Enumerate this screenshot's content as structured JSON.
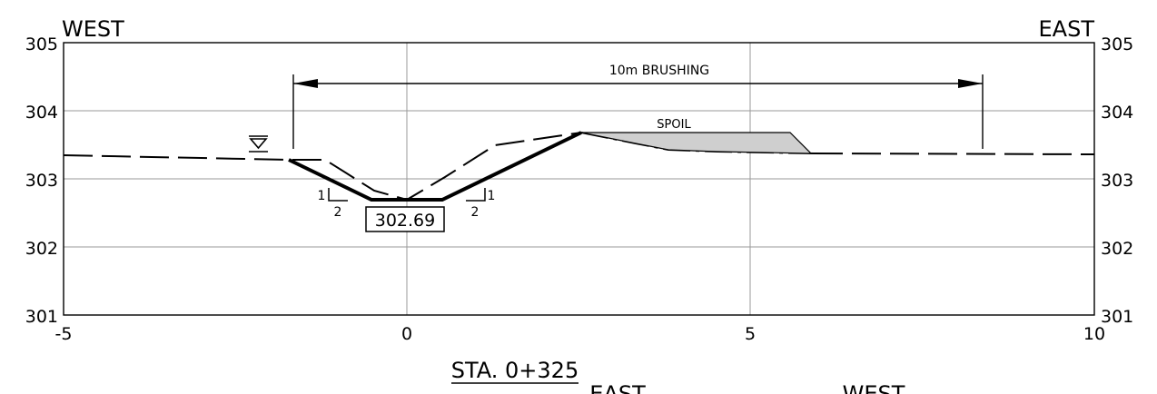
{
  "header": {
    "left": "WEST",
    "right": "EAST"
  },
  "y_axis": {
    "ticks": [
      "305",
      "304",
      "303",
      "302",
      "301"
    ]
  },
  "x_axis": {
    "ticks": [
      "-5",
      "0",
      "5",
      "10"
    ]
  },
  "annotations": {
    "brushing": "10m BRUSHING",
    "spoil": "SPOIL",
    "invert_elevation": "302.69",
    "slope_left": {
      "rise": "1",
      "run": "2"
    },
    "slope_right": {
      "rise": "1",
      "run": "2"
    }
  },
  "station_title": "STA. 0+325",
  "next_section_header": {
    "left": "EAST",
    "right": "WEST"
  }
}
